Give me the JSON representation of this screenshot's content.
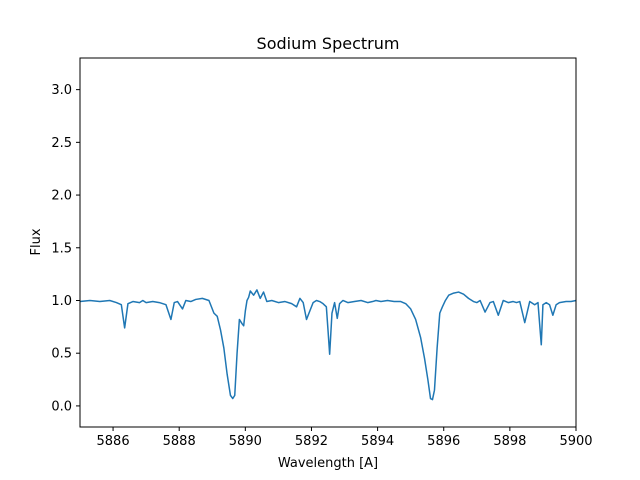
{
  "chart_data": {
    "type": "line",
    "title": "Sodium Spectrum",
    "xlabel": "Wavelength [A]",
    "ylabel": "Flux",
    "xlim": [
      5885,
      5900
    ],
    "ylim": [
      -0.2,
      3.3
    ],
    "xticks": [
      5886,
      5888,
      5890,
      5892,
      5894,
      5896,
      5898,
      5900
    ],
    "xtick_labels": [
      "5886",
      "5888",
      "5890",
      "5892",
      "5894",
      "5896",
      "5898",
      "5900"
    ],
    "yticks": [
      0.0,
      0.5,
      1.0,
      1.5,
      2.0,
      2.5,
      3.0
    ],
    "ytick_labels": [
      "0.0",
      "0.5",
      "1.0",
      "1.5",
      "2.0",
      "2.5",
      "3.0"
    ],
    "grid": false,
    "series": [
      {
        "color": "#1f77b4",
        "x": [
          5885.0,
          5885.3,
          5885.6,
          5885.9,
          5886.1,
          5886.25,
          5886.35,
          5886.45,
          5886.6,
          5886.8,
          5886.9,
          5887.0,
          5887.2,
          5887.4,
          5887.6,
          5887.75,
          5887.85,
          5887.95,
          5888.1,
          5888.2,
          5888.35,
          5888.5,
          5888.7,
          5888.9,
          5889.05,
          5889.15,
          5889.25,
          5889.35,
          5889.45,
          5889.55,
          5889.62,
          5889.68,
          5889.75,
          5889.82,
          5889.9,
          5889.95,
          5890.0,
          5890.05,
          5890.1,
          5890.15,
          5890.25,
          5890.35,
          5890.45,
          5890.55,
          5890.65,
          5890.8,
          5891.0,
          5891.2,
          5891.4,
          5891.55,
          5891.65,
          5891.75,
          5891.85,
          5891.95,
          5892.05,
          5892.15,
          5892.25,
          5892.35,
          5892.45,
          5892.5,
          5892.55,
          5892.62,
          5892.7,
          5892.78,
          5892.85,
          5892.95,
          5893.1,
          5893.3,
          5893.5,
          5893.7,
          5893.85,
          5893.95,
          5894.1,
          5894.3,
          5894.5,
          5894.7,
          5894.85,
          5895.0,
          5895.15,
          5895.3,
          5895.42,
          5895.52,
          5895.6,
          5895.66,
          5895.72,
          5895.8,
          5895.88,
          5895.96,
          5896.05,
          5896.15,
          5896.3,
          5896.45,
          5896.6,
          5896.75,
          5896.9,
          5897.0,
          5897.1,
          5897.25,
          5897.4,
          5897.5,
          5897.65,
          5897.8,
          5897.95,
          5898.1,
          5898.2,
          5898.3,
          5898.45,
          5898.6,
          5898.75,
          5898.85,
          5898.95,
          5899.0,
          5899.1,
          5899.2,
          5899.3,
          5899.4,
          5899.5,
          5899.7,
          5899.85,
          5900.0
        ],
        "y": [
          0.99,
          1.0,
          0.99,
          1.0,
          0.98,
          0.96,
          0.74,
          0.97,
          0.99,
          0.98,
          1.0,
          0.98,
          0.99,
          0.98,
          0.96,
          0.82,
          0.98,
          0.99,
          0.92,
          1.0,
          0.99,
          1.01,
          1.02,
          1.0,
          0.88,
          0.85,
          0.72,
          0.55,
          0.3,
          0.1,
          0.07,
          0.1,
          0.5,
          0.82,
          0.78,
          0.76,
          0.9,
          1.0,
          1.03,
          1.09,
          1.05,
          1.1,
          1.02,
          1.08,
          0.99,
          1.0,
          0.98,
          0.99,
          0.97,
          0.94,
          1.02,
          0.98,
          0.82,
          0.9,
          0.98,
          1.0,
          0.99,
          0.97,
          0.94,
          0.72,
          0.49,
          0.88,
          0.98,
          0.83,
          0.97,
          1.0,
          0.98,
          0.99,
          1.0,
          0.98,
          0.99,
          1.0,
          0.99,
          1.0,
          0.99,
          0.99,
          0.97,
          0.92,
          0.82,
          0.65,
          0.45,
          0.25,
          0.07,
          0.06,
          0.15,
          0.55,
          0.88,
          0.94,
          1.0,
          1.05,
          1.07,
          1.08,
          1.06,
          1.02,
          0.99,
          0.98,
          1.0,
          0.89,
          0.98,
          0.99,
          0.86,
          1.0,
          0.98,
          0.99,
          0.98,
          0.99,
          0.79,
          0.99,
          0.96,
          0.98,
          0.58,
          0.96,
          0.98,
          0.96,
          0.86,
          0.96,
          0.98,
          0.99,
          0.99,
          1.0
        ]
      }
    ]
  }
}
